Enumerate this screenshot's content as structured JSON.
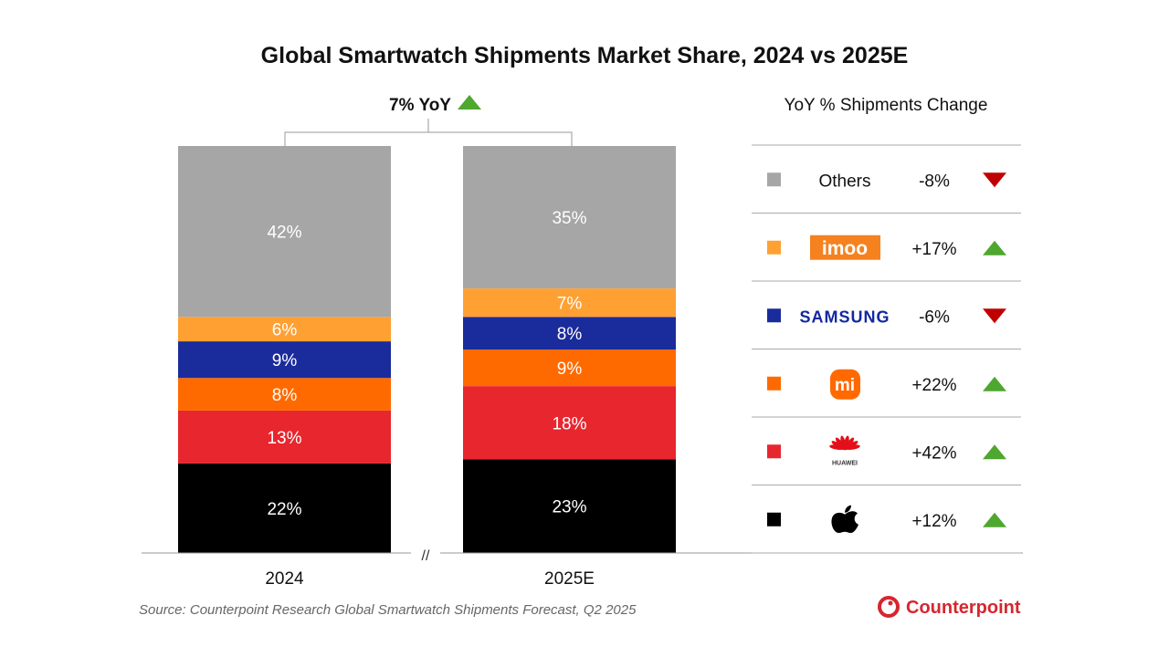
{
  "chart_data": {
    "type": "bar",
    "stacked": true,
    "title": "Global Smartwatch Shipments Market Share, 2024 vs 2025E",
    "categories": [
      "2024",
      "2025E"
    ],
    "ylim": [
      0,
      100
    ],
    "unit": "%",
    "grid": false,
    "total_change": {
      "label": "7% YoY",
      "direction": "up"
    },
    "series": [
      {
        "brand": "Apple",
        "color": "#000000",
        "values": [
          22,
          23
        ],
        "yoy": "+12%",
        "direction": "up",
        "logo": "apple-logo"
      },
      {
        "brand": "Huawei",
        "color": "#e8262e",
        "values": [
          13,
          18
        ],
        "yoy": "+42%",
        "direction": "up",
        "logo": "huawei-logo",
        "logo_text": "HUAWEI"
      },
      {
        "brand": "Xiaomi",
        "color": "#ff6a00",
        "values": [
          8,
          9
        ],
        "yoy": "+22%",
        "direction": "up",
        "logo": "xiaomi-logo",
        "logo_text": "mi"
      },
      {
        "brand": "Samsung",
        "color": "#1a2c9c",
        "values": [
          9,
          8
        ],
        "yoy": "-6%",
        "direction": "down",
        "logo": "samsung-logo",
        "logo_text": "SAMSUNG"
      },
      {
        "brand": "imoo",
        "color": "#ffa033",
        "values": [
          6,
          7
        ],
        "yoy": "+17%",
        "direction": "up",
        "logo": "imoo-logo",
        "logo_text": "imoo"
      },
      {
        "name": "Others",
        "color": "#a6a6a6",
        "values": [
          42,
          35
        ],
        "yoy": "-8%",
        "direction": "down"
      }
    ],
    "legend_title": "YoY % Shipments Change",
    "legend_placement": "right",
    "axis_break": "//",
    "source": "Source: Counterpoint Research Global Smartwatch Shipments Forecast, Q2 2025",
    "brand_logo": "Counterpoint",
    "colors": {
      "up": "#4ea72e",
      "down": "#c00000"
    }
  }
}
